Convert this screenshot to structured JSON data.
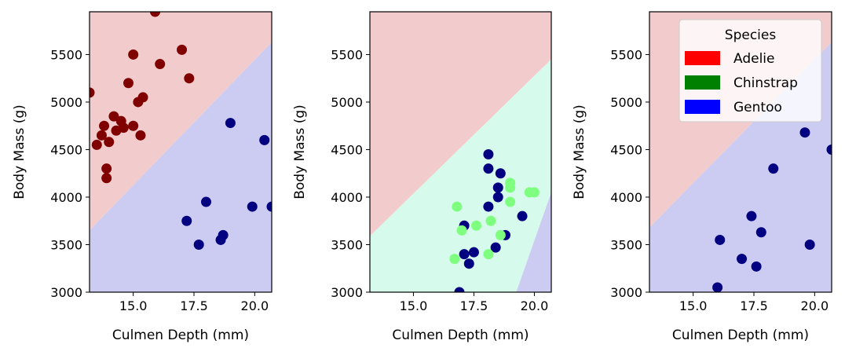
{
  "colors": {
    "adelie_region": "#f2cccc",
    "chinstrap_region": "#d6faeb",
    "gentoo_region": "#ccccf2",
    "adelie_point": "#800000",
    "chinstrap_point": "#7fff7f",
    "gentoo_point": "#000080",
    "legend_adelie": "#ff0000",
    "legend_chinstrap": "#008000",
    "legend_gentoo": "#0000ff"
  },
  "legend": {
    "title": "Species",
    "placement": "top-right of third panel",
    "entries": [
      {
        "label": "Adelie",
        "color": "#ff0000"
      },
      {
        "label": "Chinstrap",
        "color": "#008000"
      },
      {
        "label": "Gentoo",
        "color": "#0000ff"
      }
    ]
  },
  "chart_data": [
    {
      "type": "scatter",
      "xlabel": "Culmen Depth (mm)",
      "ylabel": "Body Mass (g)",
      "xlim": [
        13.2,
        20.7
      ],
      "ylim": [
        3000,
        5950
      ],
      "xticks": [
        "15.0",
        "17.5",
        "20.0"
      ],
      "yticks": [
        "3000",
        "3500",
        "4000",
        "4500",
        "5000",
        "5500"
      ],
      "regions": [
        {
          "species": "Adelie",
          "polygon": [
            [
              13.2,
              3650
            ],
            [
              20.7,
              5630
            ],
            [
              20.7,
              5950
            ],
            [
              13.2,
              5950
            ]
          ]
        },
        {
          "species": "Gentoo",
          "polygon": [
            [
              13.2,
              3000
            ],
            [
              20.7,
              3000
            ],
            [
              20.7,
              5630
            ],
            [
              13.2,
              3650
            ]
          ]
        }
      ],
      "series": [
        {
          "name": "Adelie",
          "x": [
            13.2,
            13.5,
            13.7,
            13.8,
            13.9,
            13.9,
            14.0,
            14.2,
            14.3,
            14.5,
            14.6,
            14.8,
            15.0,
            15.0,
            15.2,
            15.3,
            15.4,
            15.9,
            16.1,
            17.0,
            17.3
          ],
          "y": [
            5100,
            4550,
            4650,
            4750,
            4300,
            4200,
            4580,
            4850,
            4700,
            4800,
            4730,
            5200,
            4750,
            5500,
            5000,
            4650,
            5050,
            5950,
            5400,
            5550,
            5250
          ]
        },
        {
          "name": "Gentoo",
          "x": [
            17.2,
            17.7,
            18.0,
            18.6,
            18.7,
            19.0,
            19.9,
            20.4,
            20.7
          ],
          "y": [
            3750,
            3500,
            3950,
            3550,
            3600,
            4780,
            3900,
            4600,
            3900
          ]
        }
      ]
    },
    {
      "type": "scatter",
      "xlabel": "Culmen Depth (mm)",
      "ylabel": "Body Mass (g)",
      "xlim": [
        13.2,
        20.7
      ],
      "ylim": [
        3000,
        5950
      ],
      "xticks": [
        "15.0",
        "17.5",
        "20.0"
      ],
      "yticks": [
        "3000",
        "3500",
        "4000",
        "4500",
        "5000",
        "5500"
      ],
      "regions": [
        {
          "species": "Adelie",
          "polygon": [
            [
              13.2,
              3590
            ],
            [
              20.7,
              5450
            ],
            [
              20.7,
              5950
            ],
            [
              13.2,
              5950
            ]
          ]
        },
        {
          "species": "Chinstrap",
          "polygon": [
            [
              13.2,
              3000
            ],
            [
              19.25,
              3000
            ],
            [
              20.7,
              4050
            ],
            [
              20.7,
              5450
            ],
            [
              13.2,
              3590
            ]
          ]
        },
        {
          "species": "Gentoo",
          "polygon": [
            [
              19.25,
              3000
            ],
            [
              20.7,
              3000
            ],
            [
              20.7,
              4050
            ]
          ]
        }
      ],
      "series": [
        {
          "name": "Gentoo",
          "x": [
            16.9,
            17.1,
            17.1,
            17.3,
            17.5,
            18.1,
            18.1,
            18.1,
            18.4,
            18.5,
            18.5,
            18.6,
            18.8,
            19.5
          ],
          "y": [
            3000,
            3700,
            3400,
            3300,
            3420,
            4450,
            4300,
            3900,
            3470,
            4100,
            4000,
            4250,
            3600,
            3800
          ]
        },
        {
          "name": "Chinstrap",
          "x": [
            16.7,
            16.8,
            17.0,
            17.6,
            18.1,
            18.2,
            18.6,
            19.0,
            19.0,
            19.0,
            19.8,
            20.0
          ],
          "y": [
            3350,
            3900,
            3650,
            3700,
            3400,
            3750,
            3600,
            4150,
            4100,
            3950,
            4050,
            4050
          ]
        }
      ]
    },
    {
      "type": "scatter",
      "xlabel": "Culmen Depth (mm)",
      "ylabel": "Body Mass (g)",
      "xlim": [
        13.2,
        20.7
      ],
      "ylim": [
        3000,
        5950
      ],
      "xticks": [
        "15.0",
        "17.5",
        "20.0"
      ],
      "yticks": [
        "3000",
        "3500",
        "4000",
        "4500",
        "5000",
        "5500"
      ],
      "regions": [
        {
          "species": "Adelie",
          "polygon": [
            [
              13.2,
              3680
            ],
            [
              20.7,
              5630
            ],
            [
              20.7,
              5950
            ],
            [
              13.2,
              5950
            ]
          ]
        },
        {
          "species": "Gentoo",
          "polygon": [
            [
              13.2,
              3000
            ],
            [
              20.7,
              3000
            ],
            [
              20.7,
              5630
            ],
            [
              13.2,
              3680
            ]
          ]
        }
      ],
      "series": [
        {
          "name": "Gentoo",
          "x": [
            16.0,
            16.1,
            17.0,
            17.4,
            17.6,
            17.8,
            18.3,
            19.6,
            19.8,
            20.7
          ],
          "y": [
            3050,
            3550,
            3350,
            3800,
            3270,
            3630,
            4300,
            4680,
            3500,
            4500
          ]
        }
      ]
    }
  ]
}
